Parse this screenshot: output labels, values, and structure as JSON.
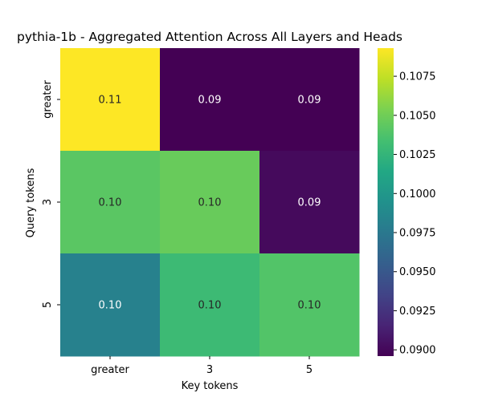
{
  "chart_data": {
    "type": "heatmap",
    "title": "pythia-1b - Aggregated Attention Across All Layers and Heads",
    "xlabel": "Key tokens",
    "ylabel": "Query tokens",
    "x_categories": [
      "greater",
      "3",
      "5"
    ],
    "y_categories": [
      "greater",
      "3",
      "5"
    ],
    "values": [
      [
        0.1093,
        0.0896,
        0.0896
      ],
      [
        0.1042,
        0.1047,
        0.0901
      ],
      [
        0.0982,
        0.103,
        0.1039
      ]
    ],
    "annotations": [
      [
        "0.11",
        "0.09",
        "0.09"
      ],
      [
        "0.10",
        "0.10",
        "0.09"
      ],
      [
        "0.10",
        "0.10",
        "0.10"
      ]
    ],
    "colormap": "viridis",
    "colorbar": {
      "vmin": 0.0896,
      "vmax": 0.1093,
      "ticks": [
        0.09,
        0.0925,
        0.095,
        0.0975,
        0.1,
        0.1025,
        0.105,
        0.1075
      ],
      "tick_labels": [
        "0.0900",
        "0.0925",
        "0.0950",
        "0.0975",
        "0.1000",
        "0.1025",
        "0.1050",
        "0.1075"
      ]
    }
  }
}
